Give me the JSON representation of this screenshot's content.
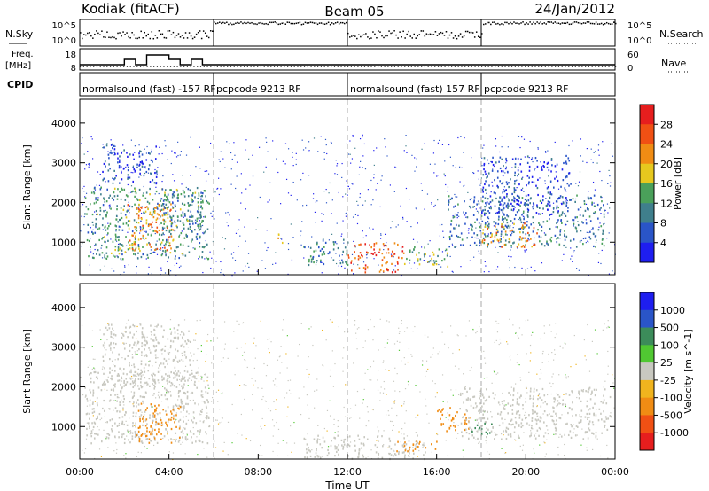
{
  "header": {
    "site": "Kodiak (fitACF)",
    "beam": "Beam 05",
    "date": "24/Jan/2012"
  },
  "top_panels": {
    "nsky_label": "N.Sky",
    "nsearch_label": "N.Search",
    "nsky_ticks": [
      "10^5",
      "10^0"
    ],
    "nsearch_ticks": [
      "10^5",
      "10^0"
    ],
    "freq_label": "Freq.",
    "freq_unit": "[MHz]",
    "freq_ticks": [
      "18",
      "8"
    ],
    "nave_label": "Nave",
    "nave_ticks": [
      "60",
      "0"
    ],
    "cpid_label": "CPID",
    "cpid_segments": [
      {
        "label": "normalsound (fast) -157 RF",
        "start": 0,
        "end": 6
      },
      {
        "label": "pcpcode 9213 RF",
        "start": 6,
        "end": 12
      },
      {
        "label": "normalsound (fast) 157 RF",
        "start": 12,
        "end": 18
      },
      {
        "label": "pcpcode 9213 RF",
        "start": 18,
        "end": 24
      }
    ]
  },
  "colors": {
    "power_scale": [
      "#1e1ef0",
      "#2a55c8",
      "#3f7f8c",
      "#4aa05a",
      "#e6c81e",
      "#f08c14",
      "#f05014",
      "#e61e1e"
    ],
    "velocity_scale": [
      "#e61e1e",
      "#f05014",
      "#f08c14",
      "#f0b41e",
      "#c8c8c0",
      "#50c832",
      "#3c8c5a",
      "#2a55c8",
      "#1e1ef0"
    ]
  },
  "chart_data": [
    {
      "type": "heatmap",
      "title": "Power",
      "ylabel": "Slant Range [km]",
      "ylim": [
        180,
        4600
      ],
      "yticks": [
        "4000",
        "3000",
        "2000",
        "1000"
      ],
      "colorbar_label": "Power [dB]",
      "colorbar_ticks": [
        "28",
        "24",
        "20",
        "16",
        "12",
        "8",
        "4"
      ],
      "colorbar_range": [
        0,
        32
      ],
      "blobs": [
        {
          "t0": 0.2,
          "t1": 5.8,
          "r0": 600,
          "r1": 2400,
          "v": 12
        },
        {
          "t0": 2.0,
          "t1": 4.2,
          "r0": 800,
          "r1": 2000,
          "v": 22
        },
        {
          "t0": 3.5,
          "t1": 5.5,
          "r0": 1300,
          "r1": 2400,
          "v": 10
        },
        {
          "t0": 1.0,
          "t1": 3.5,
          "r0": 2500,
          "r1": 3500,
          "v": 5
        },
        {
          "t0": 8.8,
          "t1": 9.1,
          "r0": 1000,
          "r1": 1300,
          "v": 18
        },
        {
          "t0": 10.0,
          "t1": 12.0,
          "r0": 400,
          "r1": 1100,
          "v": 10
        },
        {
          "t0": 12.0,
          "t1": 14.5,
          "r0": 250,
          "r1": 1000,
          "v": 26
        },
        {
          "t0": 14.5,
          "t1": 16.5,
          "r0": 400,
          "r1": 900,
          "v": 14
        },
        {
          "t0": 16.5,
          "t1": 23.5,
          "r0": 900,
          "r1": 2200,
          "v": 9
        },
        {
          "t0": 18.0,
          "t1": 20.5,
          "r0": 900,
          "r1": 1500,
          "v": 22
        },
        {
          "t0": 18.0,
          "t1": 22.0,
          "r0": 1700,
          "r1": 3200,
          "v": 5
        }
      ]
    },
    {
      "type": "heatmap",
      "title": "Velocity",
      "ylabel": "Slant Range [km]",
      "ylim": [
        180,
        4600
      ],
      "yticks": [
        "4000",
        "3000",
        "2000",
        "1000"
      ],
      "colorbar_label": "Velocity [m s^-1]",
      "colorbar_ticks": [
        "1000",
        "500",
        "100",
        "25",
        "-25",
        "-100",
        "-500",
        "-1000"
      ],
      "blobs": [
        {
          "t0": 0.2,
          "t1": 5.8,
          "r0": 600,
          "r1": 2400,
          "v": 0
        },
        {
          "t0": 2.5,
          "t1": 4.5,
          "r0": 600,
          "r1": 1600,
          "v": -200
        },
        {
          "t0": 1.0,
          "t1": 5.0,
          "r0": 2000,
          "r1": 3600,
          "v": 0
        },
        {
          "t0": 10.0,
          "t1": 15.5,
          "r0": 200,
          "r1": 800,
          "v": 0
        },
        {
          "t0": 16.0,
          "t1": 17.5,
          "r0": 900,
          "r1": 1500,
          "v": -200
        },
        {
          "t0": 14.0,
          "t1": 16.0,
          "r0": 400,
          "r1": 650,
          "v": -300
        },
        {
          "t0": 17.0,
          "t1": 23.8,
          "r0": 700,
          "r1": 2000,
          "v": 0
        },
        {
          "t0": 17.5,
          "t1": 18.5,
          "r0": 800,
          "r1": 1100,
          "v": 150
        }
      ]
    }
  ],
  "x_axis": {
    "label": "Time UT",
    "ticks": [
      "00:00",
      "04:00",
      "08:00",
      "12:00",
      "16:00",
      "20:00",
      "00:00"
    ],
    "range_hours": [
      0,
      24
    ]
  }
}
